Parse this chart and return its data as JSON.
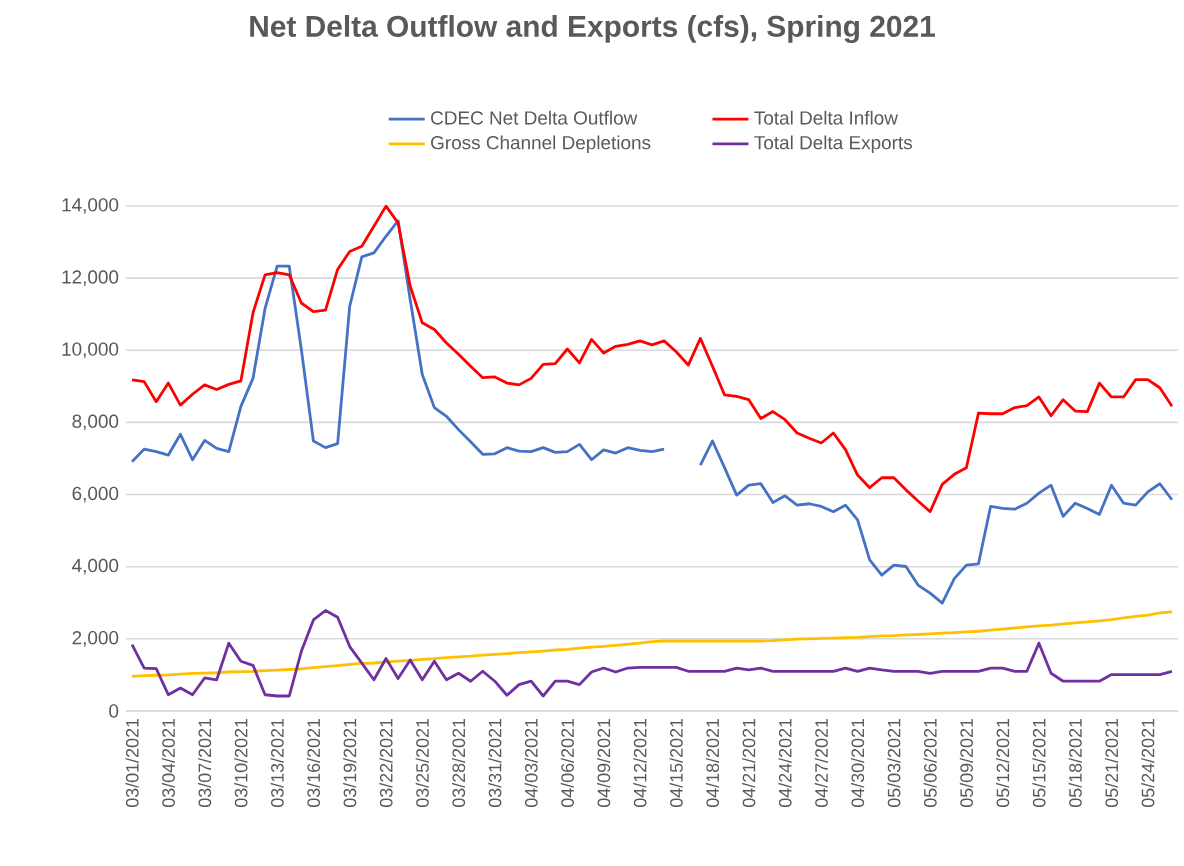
{
  "chart_data": {
    "type": "line",
    "title": "Net Delta Outflow and Exports (cfs), Spring 2021",
    "categories": [
      "03/01/2021",
      null,
      null,
      "03/04/2021",
      null,
      null,
      "03/07/2021",
      null,
      null,
      "03/10/2021",
      null,
      null,
      "03/13/2021",
      null,
      null,
      "03/16/2021",
      null,
      null,
      "03/19/2021",
      null,
      null,
      "03/22/2021",
      null,
      null,
      "03/25/2021",
      null,
      null,
      "03/28/2021",
      null,
      null,
      "03/31/2021",
      null,
      null,
      "04/03/2021",
      null,
      null,
      "04/06/2021",
      null,
      null,
      "04/09/2021",
      null,
      null,
      "04/12/2021",
      null,
      null,
      "04/15/2021",
      null,
      null,
      "04/18/2021",
      null,
      null,
      "04/21/2021",
      null,
      null,
      "04/24/2021",
      null,
      null,
      "04/27/2021",
      null,
      null,
      "04/30/2021",
      null,
      null,
      "05/03/2021",
      null,
      null,
      "05/06/2021",
      null,
      null,
      "05/09/2021",
      null,
      null,
      "05/12/2021",
      null,
      null,
      "05/15/2021",
      null,
      null,
      "05/18/2021",
      null,
      null,
      "05/21/2021",
      null,
      null,
      "05/24/2021",
      null,
      null
    ],
    "series": [
      {
        "name": "CDEC Net Delta Outflow",
        "color": "#4472c4",
        "values": [
          6910,
          7260,
          7190,
          7095,
          7670,
          6965,
          7500,
          7280,
          7190,
          8445,
          9220,
          11160,
          12330,
          12330,
          10020,
          7485,
          7300,
          7410,
          11220,
          12590,
          12700,
          13160,
          13590,
          11405,
          9330,
          8410,
          8170,
          7800,
          7465,
          7115,
          7130,
          7300,
          7205,
          7190,
          7300,
          7170,
          7190,
          7390,
          6965,
          7240,
          7150,
          7300,
          7225,
          7190,
          7260,
          null,
          null,
          6815,
          7485,
          6745,
          5985,
          6260,
          6300,
          5780,
          5965,
          5705,
          5745,
          5670,
          5525,
          5705,
          5300,
          4190,
          3765,
          4045,
          4005,
          3490,
          3265,
          2990,
          3670,
          4045,
          4080,
          5670,
          5615,
          5595,
          5760,
          6040,
          6260,
          5395,
          5760,
          5615,
          5450,
          6260,
          5760,
          5705,
          6075,
          6300,
          5855
        ]
      },
      {
        "name": "Total Delta Inflow",
        "color": "#ff0000",
        "values": [
          9180,
          9130,
          8575,
          9090,
          8480,
          8780,
          9040,
          8910,
          9055,
          9150,
          11035,
          12090,
          12150,
          12090,
          11310,
          11070,
          11110,
          12240,
          12740,
          12885,
          13440,
          13995,
          13530,
          11780,
          10760,
          10575,
          10200,
          9890,
          9555,
          9240,
          9260,
          9090,
          9040,
          9220,
          9610,
          9630,
          10035,
          9650,
          10300,
          9925,
          10110,
          10165,
          10260,
          10150,
          10260,
          9960,
          9590,
          10330,
          9555,
          8760,
          8720,
          8630,
          8110,
          8300,
          8075,
          7705,
          7560,
          7430,
          7705,
          7245,
          6540,
          6190,
          6465,
          6465,
          6130,
          5820,
          5525,
          6280,
          6560,
          6745,
          8260,
          8240,
          8240,
          8410,
          8465,
          8705,
          8185,
          8630,
          8315,
          8300,
          9090,
          8705,
          8705,
          9185,
          9185,
          8960,
          8445
        ]
      },
      {
        "name": "Gross Channel Depletions",
        "color": "#ffc000",
        "values": [
          960,
          980,
          990,
          1000,
          1020,
          1040,
          1050,
          1060,
          1080,
          1090,
          1100,
          1120,
          1130,
          1150,
          1170,
          1200,
          1230,
          1260,
          1290,
          1320,
          1330,
          1360,
          1380,
          1400,
          1430,
          1450,
          1480,
          1500,
          1520,
          1550,
          1570,
          1590,
          1620,
          1640,
          1660,
          1690,
          1710,
          1740,
          1770,
          1790,
          1820,
          1850,
          1880,
          1920,
          1940,
          1940,
          1940,
          1940,
          1940,
          1940,
          1940,
          1940,
          1940,
          1950,
          1970,
          1990,
          2000,
          2010,
          2020,
          2030,
          2040,
          2060,
          2080,
          2090,
          2110,
          2120,
          2140,
          2160,
          2170,
          2190,
          2210,
          2240,
          2270,
          2300,
          2330,
          2360,
          2380,
          2410,
          2440,
          2470,
          2500,
          2530,
          2580,
          2620,
          2660,
          2720,
          2750
        ]
      },
      {
        "name": "Total Delta Exports",
        "color": "#7030a0",
        "values": [
          1840,
          1190,
          1175,
          450,
          635,
          450,
          915,
          865,
          1880,
          1380,
          1265,
          450,
          415,
          415,
          1655,
          2525,
          2785,
          2600,
          1785,
          1325,
          865,
          1455,
          900,
          1415,
          865,
          1380,
          865,
          1045,
          825,
          1100,
          825,
          435,
          730,
          825,
          415,
          825,
          825,
          730,
          1080,
          1190,
          1080,
          1190,
          1210,
          1210,
          1210,
          1210,
          1100,
          1100,
          1100,
          1100,
          1190,
          1140,
          1190,
          1100,
          1100,
          1100,
          1100,
          1100,
          1100,
          1190,
          1100,
          1190,
          1140,
          1100,
          1100,
          1100,
          1045,
          1100,
          1100,
          1100,
          1100,
          1190,
          1190,
          1100,
          1100,
          1880,
          1045,
          825,
          825,
          825,
          825,
          1010,
          1010,
          1010,
          1010,
          1010,
          1100
        ]
      }
    ],
    "ylim": [
      0,
      14000
    ],
    "yticks": [
      0,
      {
        "value": 2000,
        "label": "2,000"
      },
      {
        "value": 4000,
        "label": "4,000"
      },
      {
        "value": 6000,
        "label": "6,000"
      },
      {
        "value": 8000,
        "label": "8,000"
      },
      {
        "value": 10000,
        "label": "10,000"
      },
      {
        "value": 12000,
        "label": "12,000"
      },
      {
        "value": 14000,
        "label": "14,000"
      }
    ],
    "grid": "y",
    "legend": "top",
    "marker": "none",
    "line_style": "solid"
  }
}
